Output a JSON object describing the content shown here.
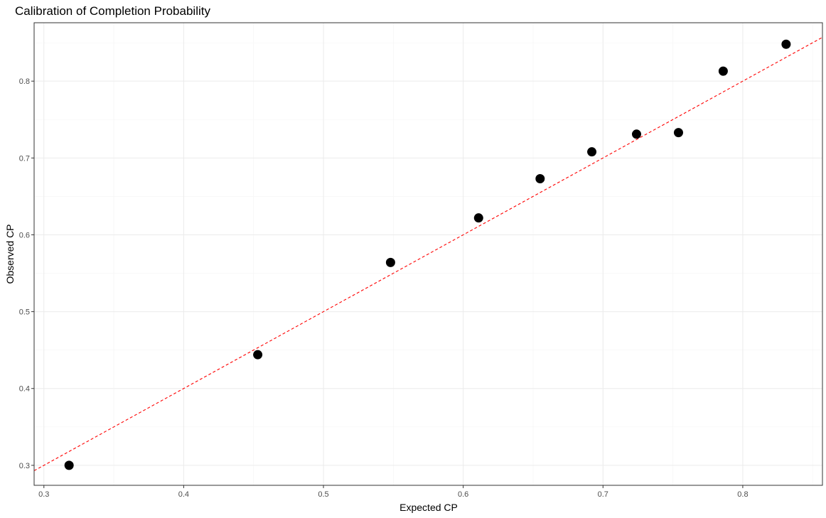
{
  "chart_data": {
    "type": "scatter",
    "title": "Calibration of Completion Probability",
    "xlabel": "Expected CP",
    "ylabel": "Observed CP",
    "xlim": [
      0.293,
      0.857
    ],
    "ylim": [
      0.274,
      0.876
    ],
    "x_ticks": [
      0.3,
      0.4,
      0.5,
      0.6,
      0.7,
      0.8
    ],
    "x_tick_labels": [
      "0.3",
      "0.4",
      "0.5",
      "0.6",
      "0.7",
      "0.8"
    ],
    "y_ticks": [
      0.3,
      0.4,
      0.5,
      0.6,
      0.7,
      0.8
    ],
    "y_tick_labels": [
      "0.3",
      "0.4",
      "0.5",
      "0.6",
      "0.7",
      "0.8"
    ],
    "grid": true,
    "points": [
      {
        "x": 0.318,
        "y": 0.3
      },
      {
        "x": 0.453,
        "y": 0.444
      },
      {
        "x": 0.548,
        "y": 0.564
      },
      {
        "x": 0.611,
        "y": 0.622
      },
      {
        "x": 0.655,
        "y": 0.673
      },
      {
        "x": 0.692,
        "y": 0.708
      },
      {
        "x": 0.724,
        "y": 0.731
      },
      {
        "x": 0.754,
        "y": 0.733
      },
      {
        "x": 0.786,
        "y": 0.813
      },
      {
        "x": 0.831,
        "y": 0.848
      }
    ],
    "reference_line": {
      "slope": 1,
      "intercept": 0,
      "style": "dashed"
    },
    "colors": {
      "points": "#000000",
      "reference_line": "#ff0000",
      "grid_major": "#ebebeb",
      "grid_minor": "#f4f4f4",
      "panel_border": "#333333"
    }
  }
}
